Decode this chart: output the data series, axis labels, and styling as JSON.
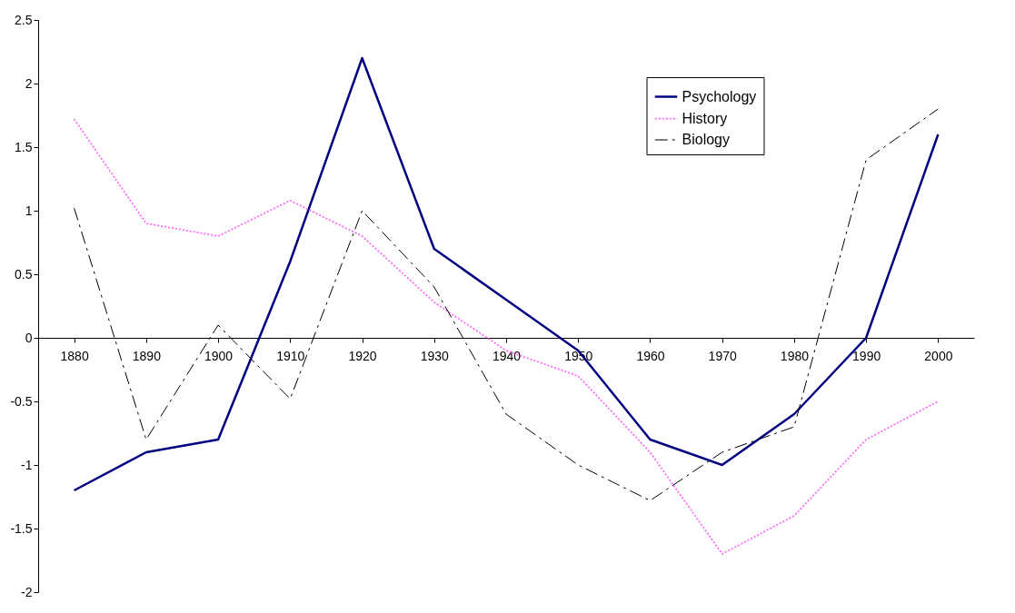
{
  "chart_data": {
    "type": "line",
    "categories": [
      "1880",
      "1890",
      "1900",
      "1910",
      "1920",
      "1930",
      "1940",
      "1950",
      "1960",
      "1970",
      "1980",
      "1990",
      "2000"
    ],
    "series": [
      {
        "name": "Psychology",
        "color": "#000080",
        "line_style": "solid",
        "values": [
          -1.2,
          -0.9,
          -0.8,
          0.6,
          2.2,
          0.7,
          0.3,
          -0.1,
          -0.8,
          -1.0,
          -0.6,
          0,
          1.6
        ]
      },
      {
        "name": "History",
        "color": "#ff66ff",
        "line_style": "dotted",
        "values": [
          1.72,
          0.9,
          0.8,
          1.08,
          0.8,
          0.28,
          -0.1,
          -0.3,
          -0.9,
          -1.7,
          -1.4,
          -0.8,
          -0.5
        ]
      },
      {
        "name": "Biology",
        "color": "#000000",
        "line_style": "dashed",
        "values": [
          1.02,
          -0.8,
          0.1,
          -0.48,
          1.0,
          0.4,
          -0.6,
          -1.0,
          -1.28,
          -0.9,
          -0.7,
          1.4,
          1.8
        ]
      }
    ],
    "ylim": [
      -2,
      2.5
    ],
    "yticks": [
      -2,
      -1.5,
      -1,
      -0.5,
      0,
      0.5,
      1,
      1.5,
      2,
      2.5
    ],
    "grid": false,
    "legend": "top right"
  }
}
